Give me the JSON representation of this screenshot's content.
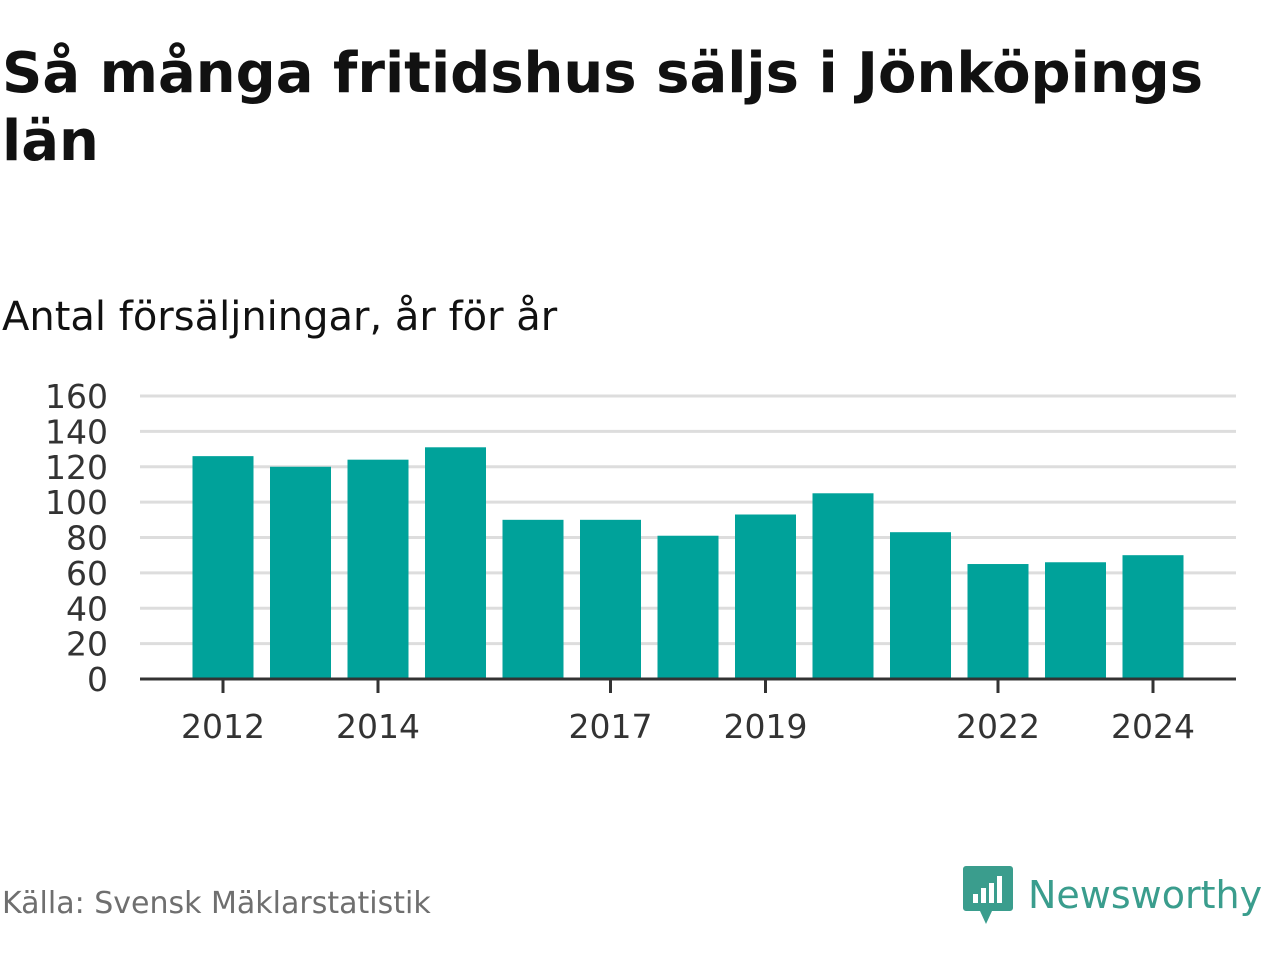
{
  "title": "Så många fritidshus säljs i Jönköpings län",
  "subtitle": "Antal försäljningar, år för år",
  "source": "Källa: Svensk Mäklarstatistik",
  "brand": {
    "name": "Newsworthy",
    "icon": "newsworthy-logo-icon"
  },
  "colors": {
    "bar": "#00a29a",
    "grid": "#dddddd",
    "axis": "#333333",
    "text": "#111111",
    "source": "#6f6f6f",
    "brand": "#3a9d8d"
  },
  "chart_data": {
    "type": "bar",
    "categories": [
      "2012",
      "2013",
      "2014",
      "2015",
      "2016",
      "2017",
      "2018",
      "2019",
      "2020",
      "2021",
      "2022",
      "2023",
      "2024"
    ],
    "values": [
      126,
      120,
      124,
      131,
      90,
      90,
      81,
      93,
      105,
      83,
      65,
      66,
      70
    ],
    "x_tick_labels": [
      "2012",
      "2014",
      "2017",
      "2019",
      "2022",
      "2024"
    ],
    "y_ticks": [
      0,
      20,
      40,
      60,
      80,
      100,
      120,
      140,
      160
    ],
    "ylim": [
      0,
      160
    ],
    "title": "Så många fritidshus säljs i Jönköpings län",
    "subtitle": "Antal försäljningar, år för år",
    "xlabel": "",
    "ylabel": "",
    "grid": true,
    "legend": "none"
  }
}
